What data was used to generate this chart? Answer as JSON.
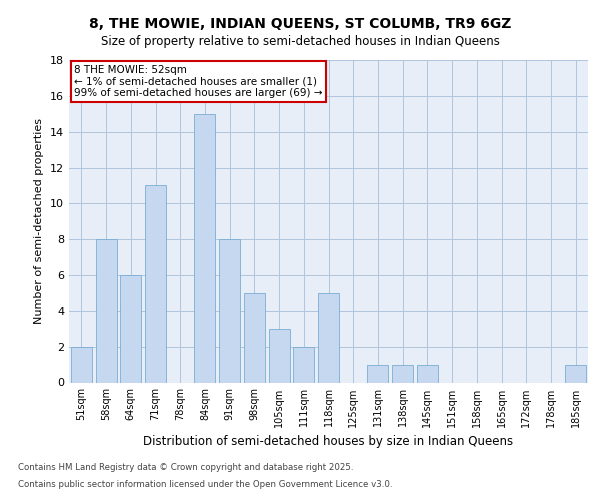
{
  "title": "8, THE MOWIE, INDIAN QUEENS, ST COLUMB, TR9 6GZ",
  "subtitle": "Size of property relative to semi-detached houses in Indian Queens",
  "xlabel": "Distribution of semi-detached houses by size in Indian Queens",
  "ylabel": "Number of semi-detached properties",
  "annotation_title": "8 THE MOWIE: 52sqm",
  "annotation_line1": "← 1% of semi-detached houses are smaller (1)",
  "annotation_line2": "99% of semi-detached houses are larger (69) →",
  "footer_line1": "Contains HM Land Registry data © Crown copyright and database right 2025.",
  "footer_line2": "Contains public sector information licensed under the Open Government Licence v3.0.",
  "categories": [
    "51sqm",
    "58sqm",
    "64sqm",
    "71sqm",
    "78sqm",
    "84sqm",
    "91sqm",
    "98sqm",
    "105sqm",
    "111sqm",
    "118sqm",
    "125sqm",
    "131sqm",
    "138sqm",
    "145sqm",
    "151sqm",
    "158sqm",
    "165sqm",
    "172sqm",
    "178sqm",
    "185sqm"
  ],
  "values": [
    2,
    8,
    6,
    11,
    0,
    15,
    8,
    5,
    3,
    2,
    5,
    0,
    1,
    1,
    1,
    0,
    0,
    0,
    0,
    0,
    1
  ],
  "bar_color": "#c5d8f0",
  "bar_edge_color": "#7aadd4",
  "annotation_box_color": "#ffffff",
  "annotation_box_edge": "#cc0000",
  "background_color": "#e8eef8",
  "ylim": [
    0,
    18
  ],
  "yticks": [
    0,
    2,
    4,
    6,
    8,
    10,
    12,
    14,
    16,
    18
  ]
}
